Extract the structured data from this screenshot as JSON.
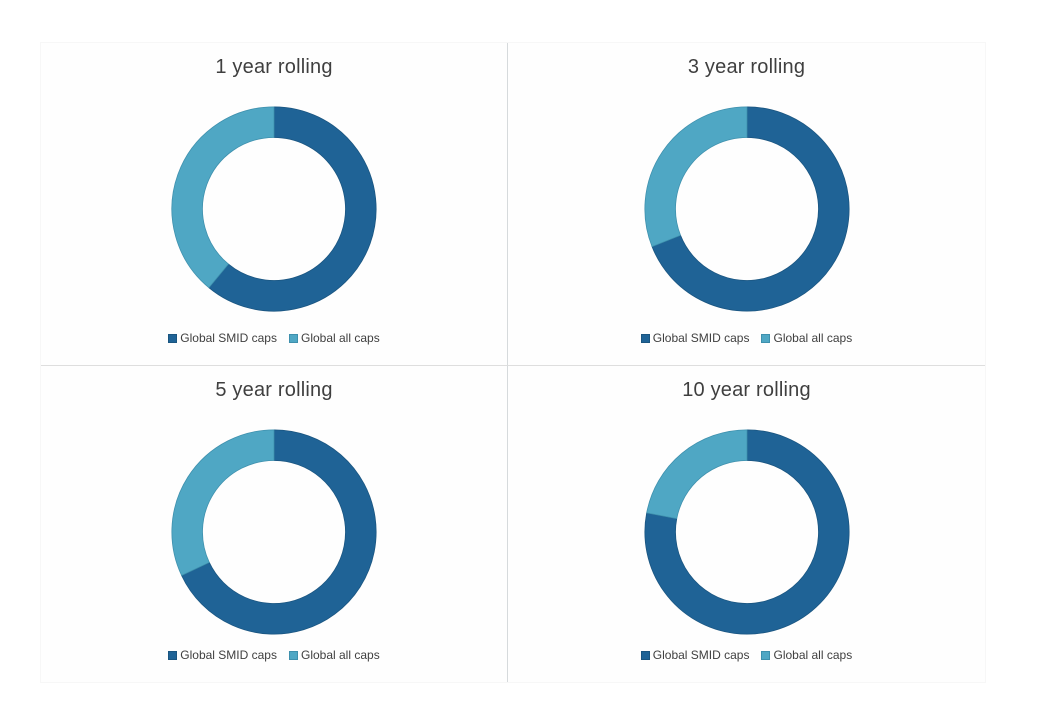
{
  "note": "Four static donut charts; slice values are approximate shares read from arc angles (no numeric data labels are rendered in the image).",
  "palette": {
    "smid_caps_fill": "#1F6396",
    "smid_caps_edge": "#1A5580",
    "all_caps_fill": "#4FA7C4",
    "all_caps_edge": "#3E90AD",
    "title_text": "#3F3F3F",
    "legend_text": "#404040",
    "divider_vertical": "#D6DADC",
    "divider_horizontal": "#DEDEDE",
    "outer_border": "#F7F7F7",
    "background": "#FFFFFF"
  },
  "chart_data": [
    {
      "type": "pie",
      "subtype": "donut",
      "title": "1 year rolling",
      "labels": [
        "Global SMID caps",
        "Global all caps"
      ],
      "values": [
        61,
        39
      ],
      "colors": [
        "#1F6396",
        "#4FA7C4"
      ],
      "edge_colors": [
        "#1A5580",
        "#3E90AD"
      ],
      "start_angle": 0,
      "direction": "clockwise",
      "hole_ratio": 0.7,
      "outer_radius": 106,
      "legend_position": "bottom",
      "data_labels": false
    },
    {
      "type": "pie",
      "subtype": "donut",
      "title": "3 year rolling",
      "labels": [
        "Global SMID caps",
        "Global all caps"
      ],
      "values": [
        69,
        31
      ],
      "colors": [
        "#1F6396",
        "#4FA7C4"
      ],
      "edge_colors": [
        "#1A5580",
        "#3E90AD"
      ],
      "start_angle": 0,
      "direction": "clockwise",
      "hole_ratio": 0.7,
      "outer_radius": 106,
      "legend_position": "bottom",
      "data_labels": false
    },
    {
      "type": "pie",
      "subtype": "donut",
      "title": "5 year rolling",
      "labels": [
        "Global SMID caps",
        "Global all caps"
      ],
      "values": [
        68,
        32
      ],
      "colors": [
        "#1F6396",
        "#4FA7C4"
      ],
      "edge_colors": [
        "#1A5580",
        "#3E90AD"
      ],
      "start_angle": 0,
      "direction": "clockwise",
      "hole_ratio": 0.7,
      "outer_radius": 106,
      "legend_position": "bottom",
      "data_labels": false
    },
    {
      "type": "pie",
      "subtype": "donut",
      "title": "10 year rolling",
      "labels": [
        "Global SMID caps",
        "Global all caps"
      ],
      "values": [
        78,
        22
      ],
      "colors": [
        "#1F6396",
        "#4FA7C4"
      ],
      "edge_colors": [
        "#1A5580",
        "#3E90AD"
      ],
      "start_angle": 0,
      "direction": "clockwise",
      "hole_ratio": 0.7,
      "outer_radius": 106,
      "legend_position": "bottom",
      "data_labels": false
    }
  ]
}
